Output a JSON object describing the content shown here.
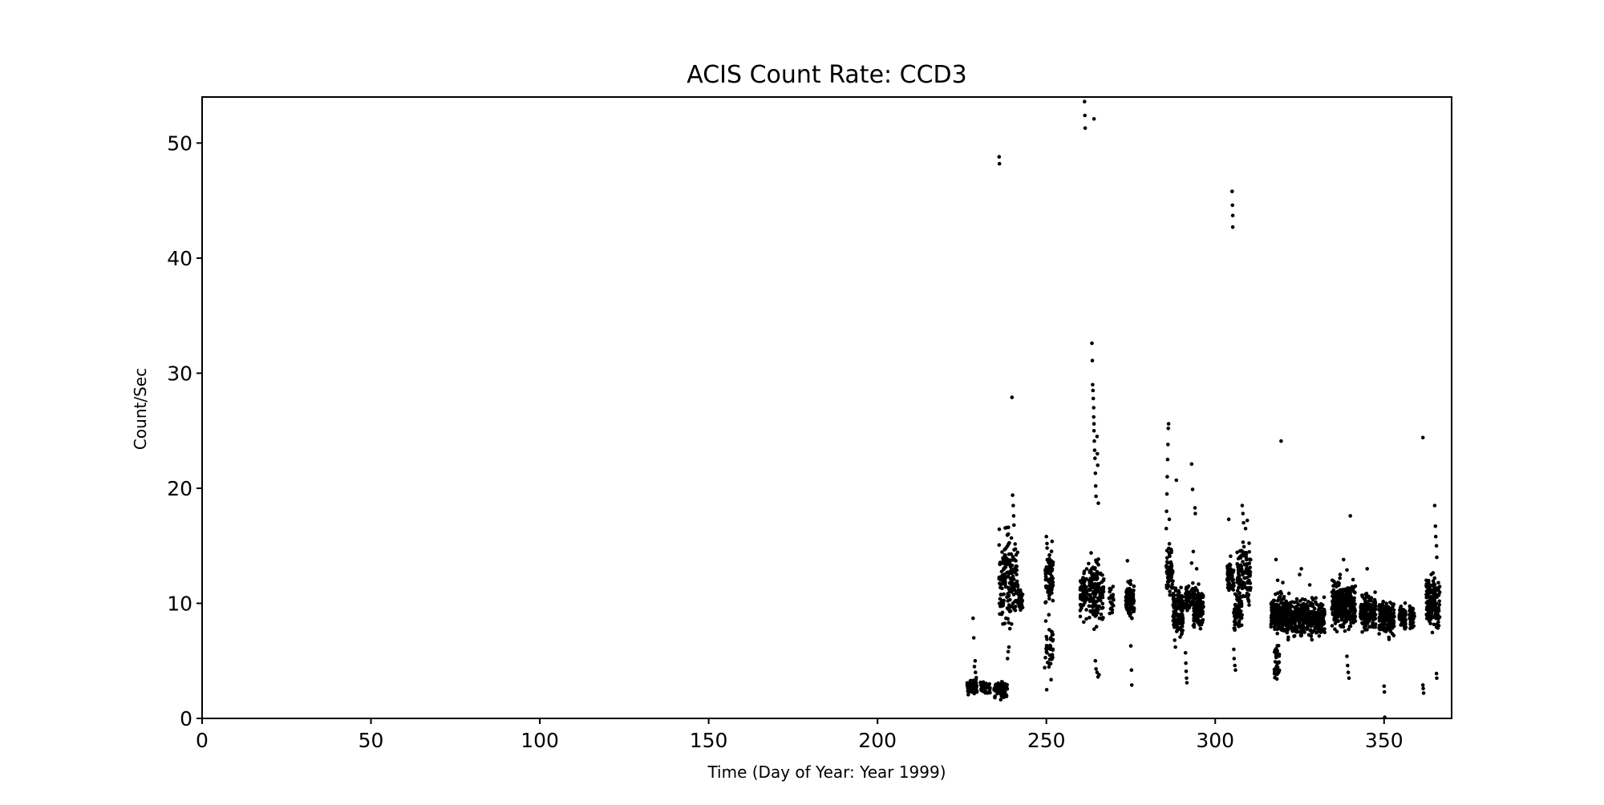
{
  "chart_data": {
    "type": "scatter",
    "title": "ACIS Count Rate: CCD3",
    "xlabel": "Time (Day of Year: Year 1999)",
    "ylabel": "Count/Sec",
    "xlim": [
      0,
      370
    ],
    "ylim": [
      0,
      54
    ],
    "x_ticks": [
      0,
      50,
      100,
      150,
      200,
      250,
      300,
      350
    ],
    "y_ticks": [
      0,
      10,
      20,
      30,
      40,
      50
    ],
    "grid": false,
    "marker_color": "#000000",
    "clusters": [
      {
        "x": [
          226.5,
          229.5
        ],
        "y": [
          2.0,
          3.5
        ],
        "n": 60
      },
      {
        "x": [
          230.5,
          233.5
        ],
        "y": [
          2.0,
          3.2
        ],
        "n": 30
      },
      {
        "x": [
          234.5,
          238.5
        ],
        "y": [
          1.6,
          3.2
        ],
        "n": 70
      },
      {
        "x": [
          236.0,
          241.5
        ],
        "y": [
          7.5,
          16.5
        ],
        "n": 180
      },
      {
        "x": [
          241.5,
          243.0
        ],
        "y": [
          9.0,
          12.0
        ],
        "n": 25
      },
      {
        "x": [
          249.5,
          252.0
        ],
        "y": [
          9.5,
          15.5
        ],
        "n": 80
      },
      {
        "x": [
          249.5,
          252.0
        ],
        "y": [
          2.5,
          9.0
        ],
        "n": 40
      },
      {
        "x": [
          260.0,
          262.0
        ],
        "y": [
          8.5,
          13.5
        ],
        "n": 60
      },
      {
        "x": [
          262.5,
          265.5
        ],
        "y": [
          8.0,
          14.5
        ],
        "n": 110
      },
      {
        "x": [
          265.5,
          267.0
        ],
        "y": [
          8.5,
          13.0
        ],
        "n": 40
      },
      {
        "x": [
          268.5,
          270.0
        ],
        "y": [
          9.0,
          11.5
        ],
        "n": 20
      },
      {
        "x": [
          273.5,
          276.0
        ],
        "y": [
          8.5,
          12.0
        ],
        "n": 90
      },
      {
        "x": [
          285.5,
          287.5
        ],
        "y": [
          10.5,
          15.0
        ],
        "n": 70
      },
      {
        "x": [
          287.5,
          290.5
        ],
        "y": [
          6.5,
          11.5
        ],
        "n": 140
      },
      {
        "x": [
          291.0,
          293.5
        ],
        "y": [
          9.0,
          12.0
        ],
        "n": 60
      },
      {
        "x": [
          293.5,
          296.5
        ],
        "y": [
          7.5,
          11.5
        ],
        "n": 120
      },
      {
        "x": [
          303.5,
          305.5
        ],
        "y": [
          10.5,
          14.0
        ],
        "n": 60
      },
      {
        "x": [
          305.5,
          308.0
        ],
        "y": [
          7.5,
          11.0
        ],
        "n": 70
      },
      {
        "x": [
          306.5,
          310.5
        ],
        "y": [
          9.5,
          16.0
        ],
        "n": 120
      },
      {
        "x": [
          316.5,
          322.5
        ],
        "y": [
          7.0,
          11.0
        ],
        "n": 240
      },
      {
        "x": [
          317.5,
          319.0
        ],
        "y": [
          3.0,
          7.0
        ],
        "n": 35
      },
      {
        "x": [
          322.5,
          332.5
        ],
        "y": [
          7.0,
          10.5
        ],
        "n": 320
      },
      {
        "x": [
          334.5,
          341.5
        ],
        "y": [
          7.5,
          12.0
        ],
        "n": 280
      },
      {
        "x": [
          343.0,
          347.5
        ],
        "y": [
          7.5,
          11.0
        ],
        "n": 180
      },
      {
        "x": [
          348.5,
          353.0
        ],
        "y": [
          7.0,
          10.5
        ],
        "n": 180
      },
      {
        "x": [
          354.5,
          356.5
        ],
        "y": [
          7.5,
          10.0
        ],
        "n": 60
      },
      {
        "x": [
          357.5,
          359.0
        ],
        "y": [
          7.5,
          10.0
        ],
        "n": 50
      },
      {
        "x": [
          362.5,
          366.5
        ],
        "y": [
          7.5,
          12.5
        ],
        "n": 160
      }
    ],
    "points": [
      [
        228.3,
        8.7
      ],
      [
        228.5,
        7.0
      ],
      [
        228.7,
        4.5
      ],
      [
        228.9,
        5.0
      ],
      [
        229.0,
        4.0
      ],
      [
        236.0,
        48.8
      ],
      [
        236.1,
        48.2
      ],
      [
        238.5,
        5.2
      ],
      [
        238.7,
        5.8
      ],
      [
        238.9,
        6.2
      ],
      [
        239.8,
        27.9
      ],
      [
        240.0,
        19.4
      ],
      [
        240.2,
        18.5
      ],
      [
        240.3,
        17.6
      ],
      [
        240.4,
        16.8
      ],
      [
        250.0,
        15.8
      ],
      [
        250.2,
        15.2
      ],
      [
        251.0,
        5.5
      ],
      [
        251.2,
        6.3
      ],
      [
        251.3,
        7.0
      ],
      [
        261.3,
        53.6
      ],
      [
        261.4,
        52.4
      ],
      [
        261.5,
        51.3
      ],
      [
        264.1,
        52.1
      ],
      [
        263.5,
        32.6
      ],
      [
        263.6,
        31.1
      ],
      [
        263.7,
        29.0
      ],
      [
        263.8,
        28.5
      ],
      [
        263.9,
        27.8
      ],
      [
        264.0,
        27.0
      ],
      [
        264.0,
        26.2
      ],
      [
        264.1,
        25.6
      ],
      [
        264.1,
        25.0
      ],
      [
        264.2,
        24.1
      ],
      [
        264.3,
        23.3
      ],
      [
        264.4,
        22.6
      ],
      [
        264.5,
        21.3
      ],
      [
        264.6,
        20.2
      ],
      [
        264.7,
        19.3
      ],
      [
        265.0,
        24.5
      ],
      [
        265.1,
        23.0
      ],
      [
        265.2,
        22.0
      ],
      [
        265.4,
        18.7
      ],
      [
        264.5,
        5.0
      ],
      [
        264.7,
        4.3
      ],
      [
        265.0,
        4.0
      ],
      [
        265.3,
        3.6
      ],
      [
        265.6,
        3.8
      ],
      [
        274.0,
        13.7
      ],
      [
        275.0,
        6.3
      ],
      [
        275.2,
        4.2
      ],
      [
        275.3,
        2.9
      ],
      [
        285.5,
        16.5
      ],
      [
        285.6,
        18.0
      ],
      [
        285.7,
        19.5
      ],
      [
        285.8,
        21.0
      ],
      [
        285.9,
        22.5
      ],
      [
        286.0,
        23.8
      ],
      [
        286.1,
        25.2
      ],
      [
        286.2,
        25.6
      ],
      [
        286.4,
        17.3
      ],
      [
        288.5,
        20.7
      ],
      [
        288.0,
        6.8
      ],
      [
        288.2,
        6.2
      ],
      [
        291.2,
        5.7
      ],
      [
        291.3,
        4.8
      ],
      [
        291.4,
        4.1
      ],
      [
        291.5,
        3.5
      ],
      [
        291.6,
        3.1
      ],
      [
        293.0,
        22.1
      ],
      [
        293.3,
        19.9
      ],
      [
        294.0,
        18.3
      ],
      [
        294.1,
        17.8
      ],
      [
        293.0,
        13.5
      ],
      [
        293.5,
        14.5
      ],
      [
        294.5,
        13.0
      ],
      [
        304.0,
        17.3
      ],
      [
        305.0,
        45.8
      ],
      [
        305.1,
        44.6
      ],
      [
        305.2,
        43.7
      ],
      [
        305.2,
        42.7
      ],
      [
        305.5,
        6.0
      ],
      [
        305.6,
        5.2
      ],
      [
        305.8,
        4.6
      ],
      [
        306.0,
        4.2
      ],
      [
        308.0,
        18.5
      ],
      [
        308.2,
        17.8
      ],
      [
        308.4,
        17.0
      ],
      [
        309.0,
        16.5
      ],
      [
        309.5,
        17.2
      ],
      [
        318.0,
        13.8
      ],
      [
        318.5,
        12.0
      ],
      [
        319.5,
        24.1
      ],
      [
        320.0,
        11.8
      ],
      [
        325.0,
        12.5
      ],
      [
        325.5,
        13.0
      ],
      [
        328.0,
        11.6
      ],
      [
        337.0,
        12.5
      ],
      [
        338.0,
        13.8
      ],
      [
        339.0,
        12.9
      ],
      [
        340.0,
        17.6
      ],
      [
        339.0,
        5.4
      ],
      [
        339.2,
        4.6
      ],
      [
        339.4,
        4.0
      ],
      [
        339.6,
        3.5
      ],
      [
        345.0,
        13.0
      ],
      [
        350.0,
        2.8
      ],
      [
        350.1,
        2.3
      ],
      [
        350.2,
        0.1
      ],
      [
        361.5,
        24.4
      ],
      [
        361.5,
        2.9
      ],
      [
        361.6,
        2.6
      ],
      [
        361.7,
        2.2
      ],
      [
        362.5,
        12.0
      ],
      [
        365.0,
        18.5
      ],
      [
        365.2,
        16.7
      ],
      [
        365.3,
        15.8
      ],
      [
        365.5,
        15.0
      ],
      [
        365.6,
        14.0
      ],
      [
        365.5,
        3.9
      ],
      [
        365.6,
        3.5
      ]
    ]
  }
}
